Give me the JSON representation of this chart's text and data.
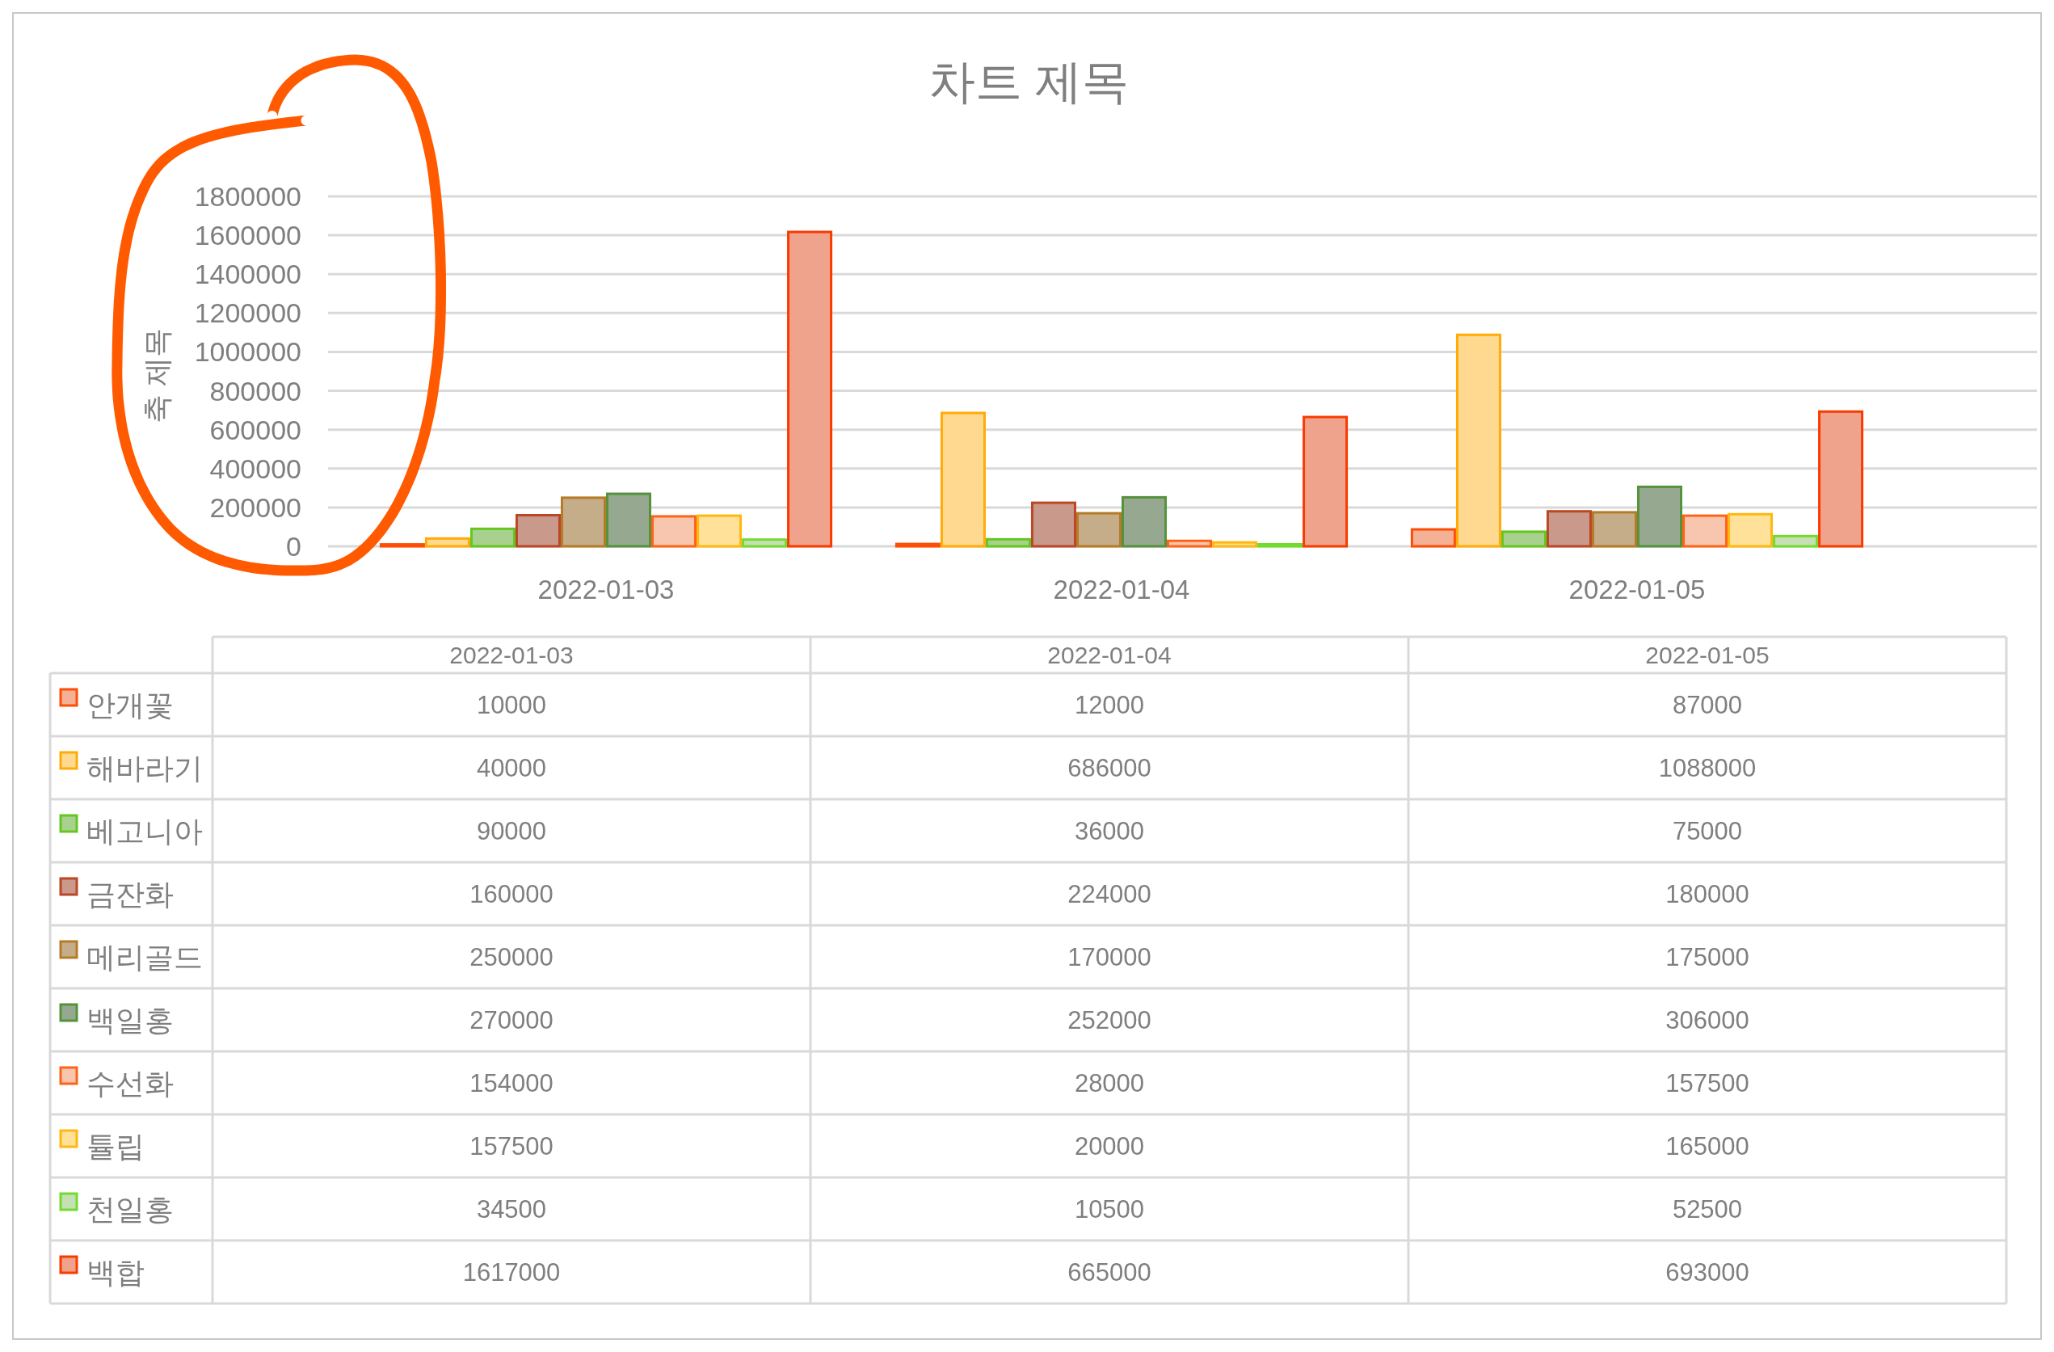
{
  "chart_data": {
    "type": "bar",
    "title": "차트 제목",
    "ylabel": "축 제목",
    "categories": [
      "2022-01-03",
      "2022-01-04",
      "2022-01-05"
    ],
    "series": [
      {
        "name": "안개꽃",
        "color": "#f4b196",
        "values": [
          10000,
          12000,
          87000
        ]
      },
      {
        "name": "해바라기",
        "color": "#ffd98f",
        "values": [
          40000,
          686000,
          1088000
        ]
      },
      {
        "name": "베고니아",
        "color": "#a9d18e",
        "values": [
          90000,
          36000,
          75000
        ]
      },
      {
        "name": "금잔화",
        "color": "#c9998b",
        "values": [
          160000,
          224000,
          180000
        ]
      },
      {
        "name": "메리골드",
        "color": "#c6ad8a",
        "values": [
          250000,
          170000,
          175000
        ]
      },
      {
        "name": "백일홍",
        "color": "#97a890",
        "values": [
          270000,
          252000,
          306000
        ]
      },
      {
        "name": "수선화",
        "color": "#f8c6ae",
        "values": [
          154000,
          28000,
          157500
        ]
      },
      {
        "name": "튤립",
        "color": "#ffe19a",
        "values": [
          157500,
          20000,
          165000
        ]
      },
      {
        "name": "천일홍",
        "color": "#c5e0b4",
        "values": [
          34500,
          10500,
          52500
        ]
      },
      {
        "name": "백합",
        "color": "#efa38c",
        "values": [
          1617000,
          665000,
          693000
        ]
      }
    ],
    "ylim": [
      0,
      1800000
    ],
    "yticks": [
      0,
      200000,
      400000,
      600000,
      800000,
      1000000,
      1200000,
      1400000,
      1600000,
      1800000
    ],
    "grid": "y",
    "legend": "bottom",
    "data_labels": true
  }
}
